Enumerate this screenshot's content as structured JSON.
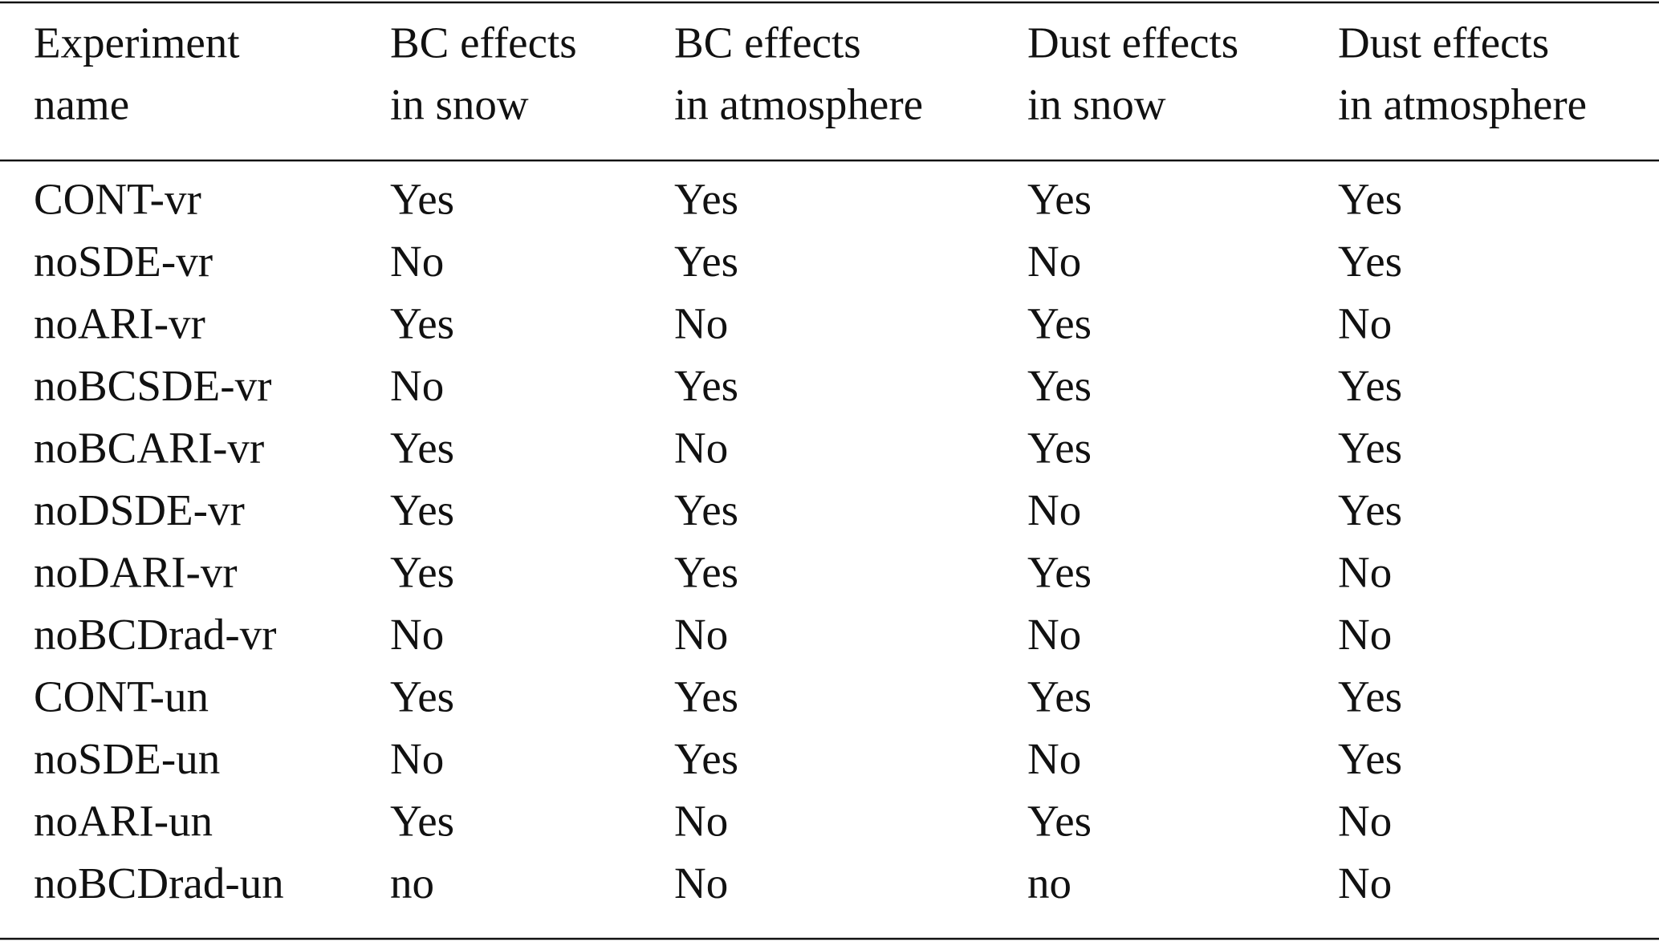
{
  "table": {
    "header": [
      [
        "Experiment",
        "name"
      ],
      [
        "BC effects",
        "in snow"
      ],
      [
        "BC effects",
        "in atmosphere"
      ],
      [
        "Dust effects",
        "in snow"
      ],
      [
        "Dust effects",
        "in atmosphere"
      ]
    ],
    "rows": [
      [
        "CONT-vr",
        "Yes",
        "Yes",
        "Yes",
        "Yes"
      ],
      [
        "noSDE-vr",
        "No",
        "Yes",
        "No",
        "Yes"
      ],
      [
        "noARI-vr",
        "Yes",
        "No",
        "Yes",
        "No"
      ],
      [
        "noBCSDE-vr",
        "No",
        "Yes",
        "Yes",
        "Yes"
      ],
      [
        "noBCARI-vr",
        "Yes",
        "No",
        "Yes",
        "Yes"
      ],
      [
        "noDSDE-vr",
        "Yes",
        "Yes",
        "No",
        "Yes"
      ],
      [
        "noDARI-vr",
        "Yes",
        "Yes",
        "Yes",
        "No"
      ],
      [
        "noBCDrad-vr",
        "No",
        "No",
        "No",
        "No"
      ],
      [
        "CONT-un",
        "Yes",
        "Yes",
        "Yes",
        "Yes"
      ],
      [
        "noSDE-un",
        "No",
        "Yes",
        "No",
        "Yes"
      ],
      [
        "noARI-un",
        "Yes",
        "No",
        "Yes",
        "No"
      ],
      [
        "noBCDrad-un",
        "no",
        "No",
        "no",
        "No"
      ]
    ]
  }
}
